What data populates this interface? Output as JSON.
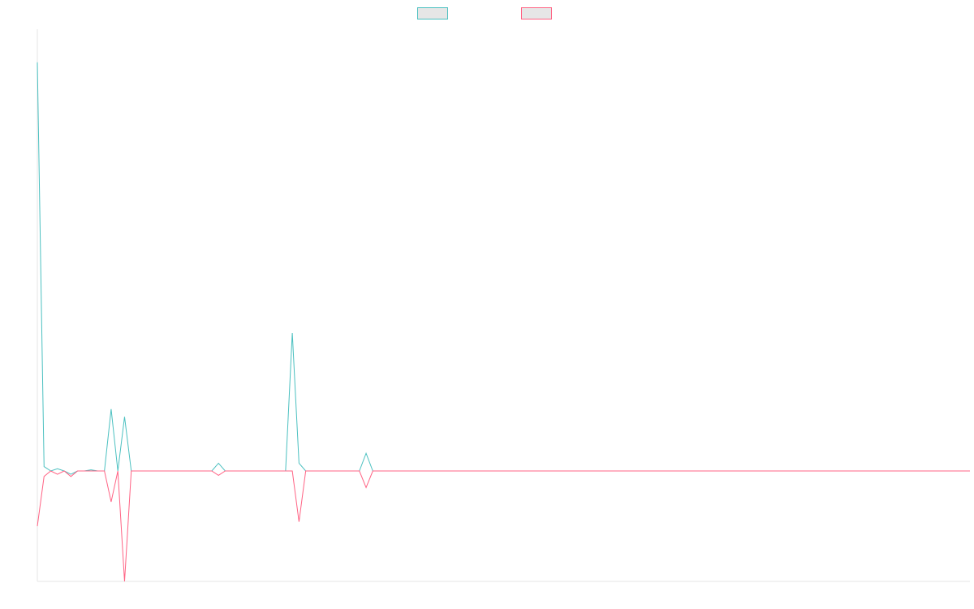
{
  "chart_data": {
    "type": "line",
    "title": "",
    "xlabel": "",
    "ylabel": "",
    "grid": false,
    "legend_placement": "top-center",
    "point_count": 140,
    "ylim": [
      -1,
      4
    ],
    "series": [
      {
        "color": "#4bc0c0",
        "values": [
          3.7,
          0.04,
          0,
          0.02,
          0,
          -0.03,
          0,
          0,
          0.01,
          0,
          0,
          0.56,
          0,
          0.49,
          0,
          0,
          0,
          0,
          0,
          0,
          0,
          0,
          0,
          0,
          0,
          0,
          0,
          0.07,
          0,
          0,
          0,
          0,
          0,
          0,
          0,
          0,
          0,
          0,
          1.25,
          0.07,
          0,
          0,
          0,
          0,
          0,
          0,
          0,
          0,
          0,
          0.16,
          0,
          0,
          0,
          0,
          0,
          0,
          0,
          0,
          0,
          0,
          0,
          0,
          0,
          0,
          0,
          0,
          0,
          0,
          0,
          0,
          0,
          0,
          0,
          0,
          0,
          0,
          0,
          0,
          0,
          0,
          0,
          0,
          0,
          0,
          0,
          0,
          0,
          0,
          0,
          0,
          0,
          0,
          0,
          0,
          0,
          0,
          0,
          0,
          0,
          0,
          0,
          0,
          0,
          0,
          0,
          0,
          0,
          0,
          0,
          0,
          0,
          0,
          0,
          0,
          0,
          0,
          0,
          0,
          0,
          0,
          0,
          0,
          0,
          0,
          0,
          0,
          0,
          0,
          0,
          0,
          0,
          0,
          0,
          0,
          0,
          0,
          0,
          0,
          0,
          0
        ]
      },
      {
        "color": "#ff6384",
        "values": [
          -0.5,
          -0.05,
          0,
          -0.03,
          0,
          -0.05,
          0,
          0,
          0,
          0,
          0,
          -0.28,
          0,
          -1.0,
          0,
          0,
          0,
          0,
          0,
          0,
          0,
          0,
          0,
          0,
          0,
          0,
          0,
          -0.04,
          0,
          0,
          0,
          0,
          0,
          0,
          0,
          0,
          0,
          0,
          0,
          -0.46,
          0,
          0,
          0,
          0,
          0,
          0,
          0,
          0,
          0,
          -0.15,
          0,
          0,
          0,
          0,
          0,
          0,
          0,
          0,
          0,
          0,
          0,
          0,
          0,
          0,
          0,
          0,
          0,
          0,
          0,
          0,
          0,
          0,
          0,
          0,
          0,
          0,
          0,
          0,
          0,
          0,
          0,
          0,
          0,
          0,
          0,
          0,
          0,
          0,
          0,
          0,
          0,
          0,
          0,
          0,
          0,
          0,
          0,
          0,
          0,
          0,
          0,
          0,
          0,
          0,
          0,
          0,
          0,
          0,
          0,
          0,
          0,
          0,
          0,
          0,
          0,
          0,
          0,
          0,
          0,
          0,
          0,
          0,
          0,
          0,
          0,
          0,
          0,
          0,
          0,
          0,
          0,
          0,
          0,
          0,
          0,
          0,
          0,
          0,
          0,
          0
        ]
      }
    ]
  }
}
